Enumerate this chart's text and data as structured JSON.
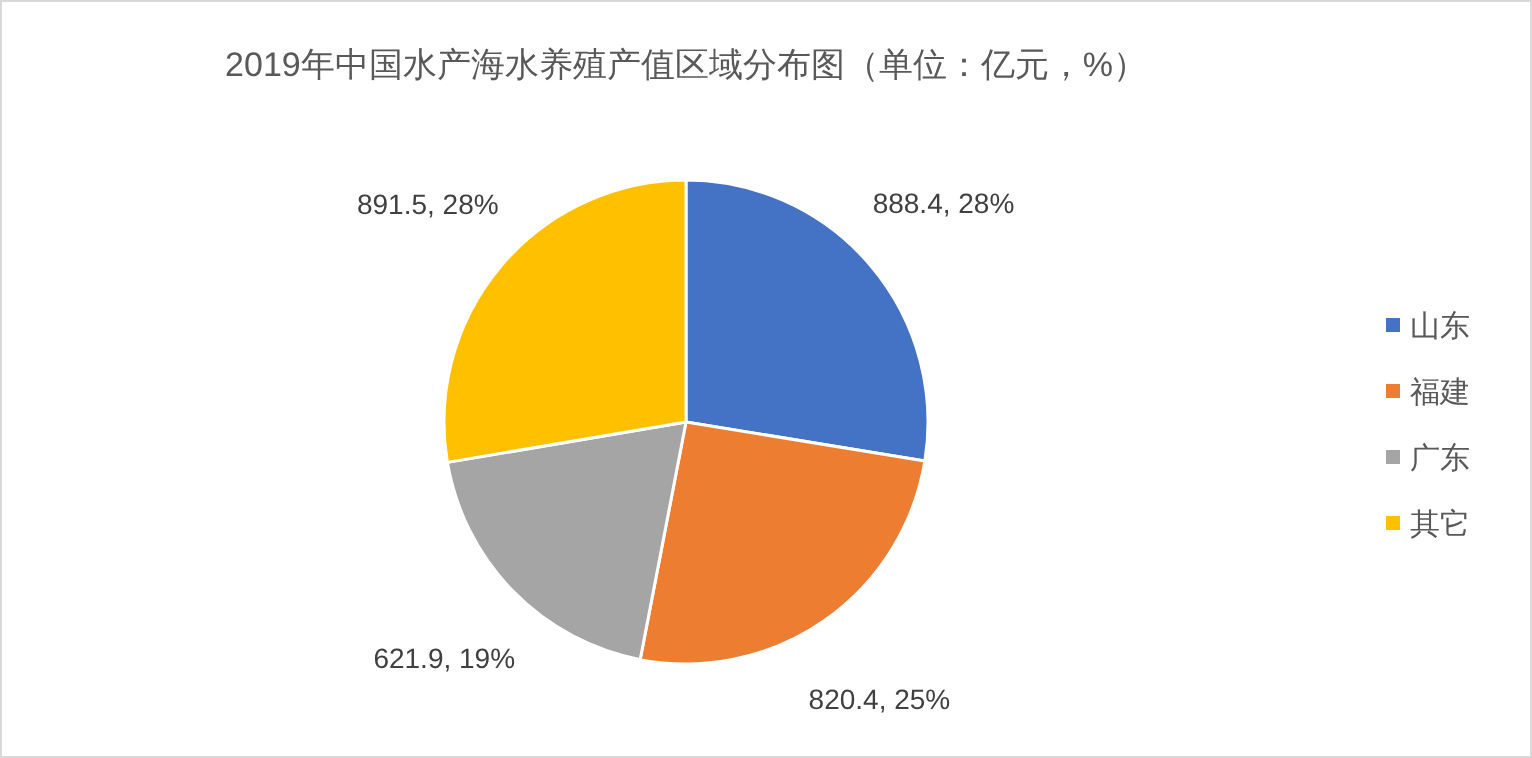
{
  "chart_data": {
    "type": "pie",
    "title": "2019年中国水产海水养殖产值区域分布图（单位：亿元，%）",
    "categories": [
      "山东",
      "福建",
      "广东",
      "其它"
    ],
    "values": [
      888.4,
      820.4,
      621.9,
      891.5
    ],
    "colors": [
      "#4472c4",
      "#ed7d31",
      "#a5a5a5",
      "#ffc000"
    ],
    "value_labels": [
      "888.4, 28%",
      "820.4, 25%",
      "621.9, 19%",
      "891.5, 28%"
    ],
    "legend": "right"
  }
}
